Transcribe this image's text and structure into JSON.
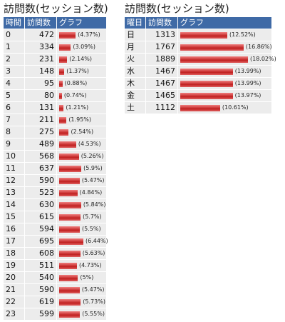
{
  "tables": [
    {
      "title": "訪問数(セッション数)",
      "headers": [
        "時間",
        "訪問数",
        "グラフ"
      ],
      "rows": [
        [
          "0",
          472,
          "(4.37%)"
        ],
        [
          "1",
          334,
          "(3.09%)"
        ],
        [
          "2",
          231,
          "(2.14%)"
        ],
        [
          "3",
          148,
          "(1.37%)"
        ],
        [
          "4",
          95,
          "(0.88%)"
        ],
        [
          "5",
          80,
          "(0.74%)"
        ],
        [
          "6",
          131,
          "(1.21%)"
        ],
        [
          "7",
          211,
          "(1.95%)"
        ],
        [
          "8",
          275,
          "(2.54%)"
        ],
        [
          "9",
          489,
          "(4.53%)"
        ],
        [
          "10",
          568,
          "(5.26%)"
        ],
        [
          "11",
          637,
          "(5.9%)"
        ],
        [
          "12",
          590,
          "(5.47%)"
        ],
        [
          "13",
          523,
          "(4.84%)"
        ],
        [
          "14",
          630,
          "(5.84%)"
        ],
        [
          "15",
          615,
          "(5.7%)"
        ],
        [
          "16",
          594,
          "(5.5%)"
        ],
        [
          "17",
          695,
          "(6.44%)"
        ],
        [
          "18",
          608,
          "(5.63%)"
        ],
        [
          "19",
          511,
          "(4.73%)"
        ],
        [
          "20",
          540,
          "(5%)"
        ],
        [
          "21",
          590,
          "(5.47%)"
        ],
        [
          "22",
          619,
          "(5.73%)"
        ],
        [
          "23",
          599,
          "(5.55%)"
        ]
      ]
    },
    {
      "title": "訪問数(セッション数)",
      "headers": [
        "曜日",
        "訪問数",
        "グラフ"
      ],
      "rows": [
        [
          "日",
          1313,
          "(12.52%)"
        ],
        [
          "月",
          1767,
          "(16.86%)"
        ],
        [
          "火",
          1889,
          "(18.02%)"
        ],
        [
          "水",
          1467,
          "(13.99%)"
        ],
        [
          "木",
          1467,
          "(13.99%)"
        ],
        [
          "金",
          1465,
          "(13.97%)"
        ],
        [
          "土",
          1112,
          "(10.61%)"
        ]
      ]
    }
  ]
}
